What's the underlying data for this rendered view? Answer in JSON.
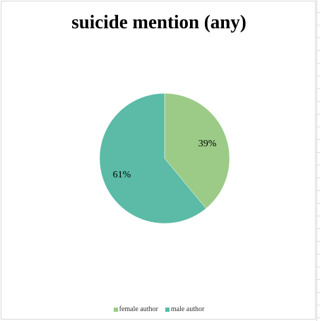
{
  "chart_data": {
    "type": "pie",
    "title": "suicide mention (any)",
    "slices": [
      {
        "label": "female author",
        "value": 39,
        "display": "39%",
        "color": "#9bcb87"
      },
      {
        "label": "male author",
        "value": 61,
        "display": "61%",
        "color": "#5bbba6"
      }
    ],
    "legend_position": "bottom"
  }
}
